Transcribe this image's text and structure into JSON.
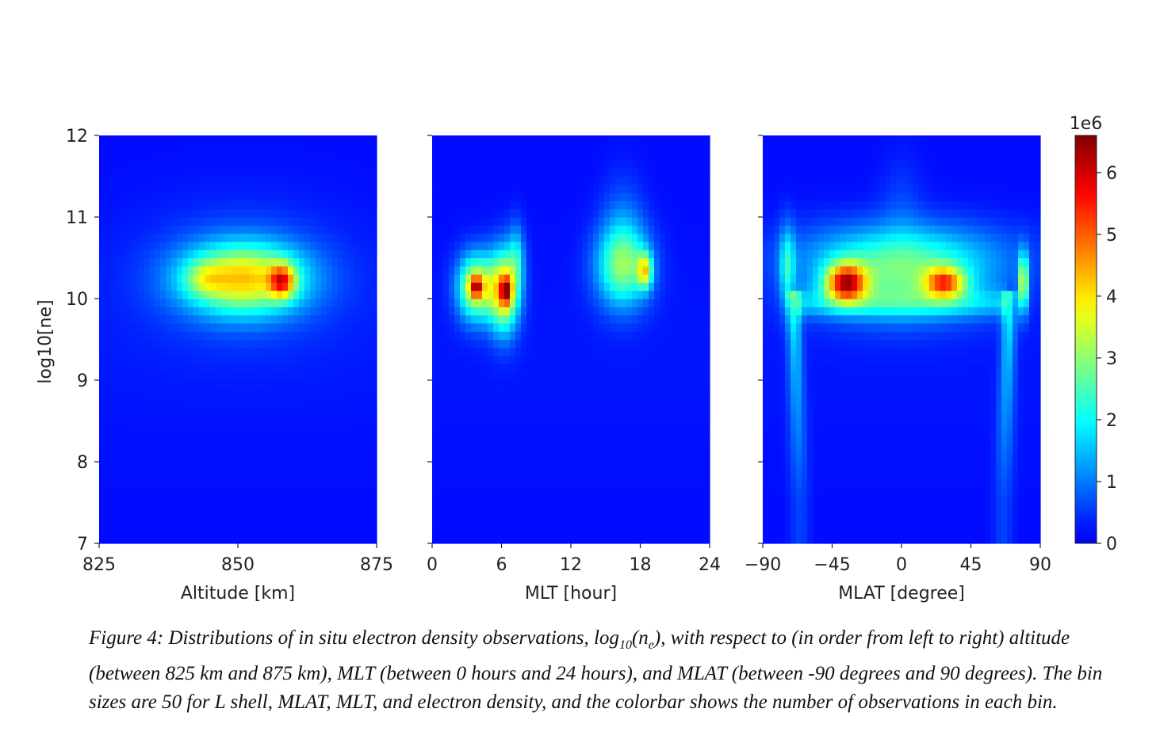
{
  "chart_data": [
    {
      "type": "heatmap",
      "xlabel": "Altitude [km]",
      "ylabel": "log10[ne]",
      "xlim": [
        825,
        875
      ],
      "ylim": [
        7,
        12
      ],
      "xticks": [
        "825",
        "850",
        "875"
      ],
      "xtick_values": [
        825,
        850,
        875
      ],
      "yticks": [
        "7",
        "8",
        "9",
        "10",
        "11",
        "12"
      ],
      "yticks_values": [
        7,
        8,
        9,
        10,
        11,
        12
      ],
      "bins": 50,
      "clusters": [
        {
          "x": 851,
          "y": 10.25,
          "sx": 7.5,
          "sy": 0.3,
          "amp": 3.6
        },
        {
          "x": 858,
          "y": 10.22,
          "sx": 1.6,
          "sy": 0.14,
          "amp": 3.2
        },
        {
          "x": 844,
          "y": 10.25,
          "sx": 2.5,
          "sy": 0.14,
          "amp": 1.0
        },
        {
          "x": 851,
          "y": 10.3,
          "sx": 14,
          "sy": 0.65,
          "amp": 0.45
        }
      ]
    },
    {
      "type": "heatmap",
      "xlabel": "MLT [hour]",
      "xlim": [
        0,
        24
      ],
      "ylim": [
        7,
        12
      ],
      "xticks": [
        "0",
        "6",
        "12",
        "18",
        "24"
      ],
      "xtick_values": [
        0,
        6,
        12,
        18,
        24
      ],
      "bins": 50,
      "clusters": [
        {
          "x": 3.8,
          "y": 10.15,
          "sx": 1.1,
          "sy": 0.28,
          "amp": 3.5
        },
        {
          "x": 3.8,
          "y": 10.15,
          "sx": 0.4,
          "sy": 0.09,
          "amp": 2.8
        },
        {
          "x": 6.2,
          "y": 10.1,
          "sx": 0.9,
          "sy": 0.35,
          "amp": 3.8
        },
        {
          "x": 6.4,
          "y": 10.1,
          "sx": 0.35,
          "sy": 0.12,
          "amp": 2.7
        },
        {
          "x": 7.3,
          "y": 10.5,
          "sx": 0.5,
          "sy": 0.3,
          "amp": 1.3
        },
        {
          "x": 16.5,
          "y": 10.4,
          "sx": 1.6,
          "sy": 0.35,
          "amp": 2.6
        },
        {
          "x": 18.4,
          "y": 10.35,
          "sx": 0.45,
          "sy": 0.15,
          "amp": 2.8
        },
        {
          "x": 16.5,
          "y": 10.9,
          "sx": 1.3,
          "sy": 0.45,
          "amp": 0.6
        }
      ]
    },
    {
      "type": "heatmap",
      "xlabel": "MLAT [degree]",
      "xlim": [
        -90,
        90
      ],
      "ylim": [
        7,
        12
      ],
      "xticks": [
        "−90",
        "−45",
        "0",
        "45",
        "90"
      ],
      "xtick_values": [
        -90,
        -45,
        0,
        45,
        90
      ],
      "bins": 50,
      "clusters": [
        {
          "x": 0,
          "y": 10.25,
          "sx": 40,
          "sy": 0.35,
          "amp": 2.1
        },
        {
          "x": -36,
          "y": 10.2,
          "sx": 9,
          "sy": 0.16,
          "amp": 4.6
        },
        {
          "x": 28,
          "y": 10.2,
          "sx": 9,
          "sy": 0.13,
          "amp": 3.4
        },
        {
          "x": 79,
          "y": 10.2,
          "sx": 2.2,
          "sy": 0.25,
          "amp": 3.2
        },
        {
          "x": -74,
          "y": 10.4,
          "sx": 3.5,
          "sy": 0.35,
          "amp": 1.6
        },
        {
          "x": 0,
          "y": 10.6,
          "sx": 52,
          "sy": 0.28,
          "amp": 0.9
        },
        {
          "x": 0,
          "y": 11.2,
          "sx": 10,
          "sy": 0.4,
          "amp": 0.35
        }
      ],
      "arches": true
    }
  ],
  "colorbar": {
    "label": "1e6",
    "min": 0,
    "max": 6.6,
    "ticks": [
      "0",
      "1",
      "2",
      "3",
      "4",
      "5",
      "6"
    ],
    "tick_values": [
      0,
      1,
      2,
      3,
      4,
      5,
      6
    ],
    "colormap": "jet"
  },
  "caption": {
    "prefix": "Figure 4: Distributions of in situ electron density observations, log",
    "sub1": "10",
    "mid": "(n",
    "sub2": "e",
    "suffix": "), with respect to (in order from left to right) altitude (between 825 km and 875 km), MLT (between 0 hours and 24 hours), and MLAT (between -90 degrees and 90 degrees). The bin sizes are 50 for L shell, MLAT, MLT, and electron density, and the colorbar shows the number of observations in each bin."
  }
}
